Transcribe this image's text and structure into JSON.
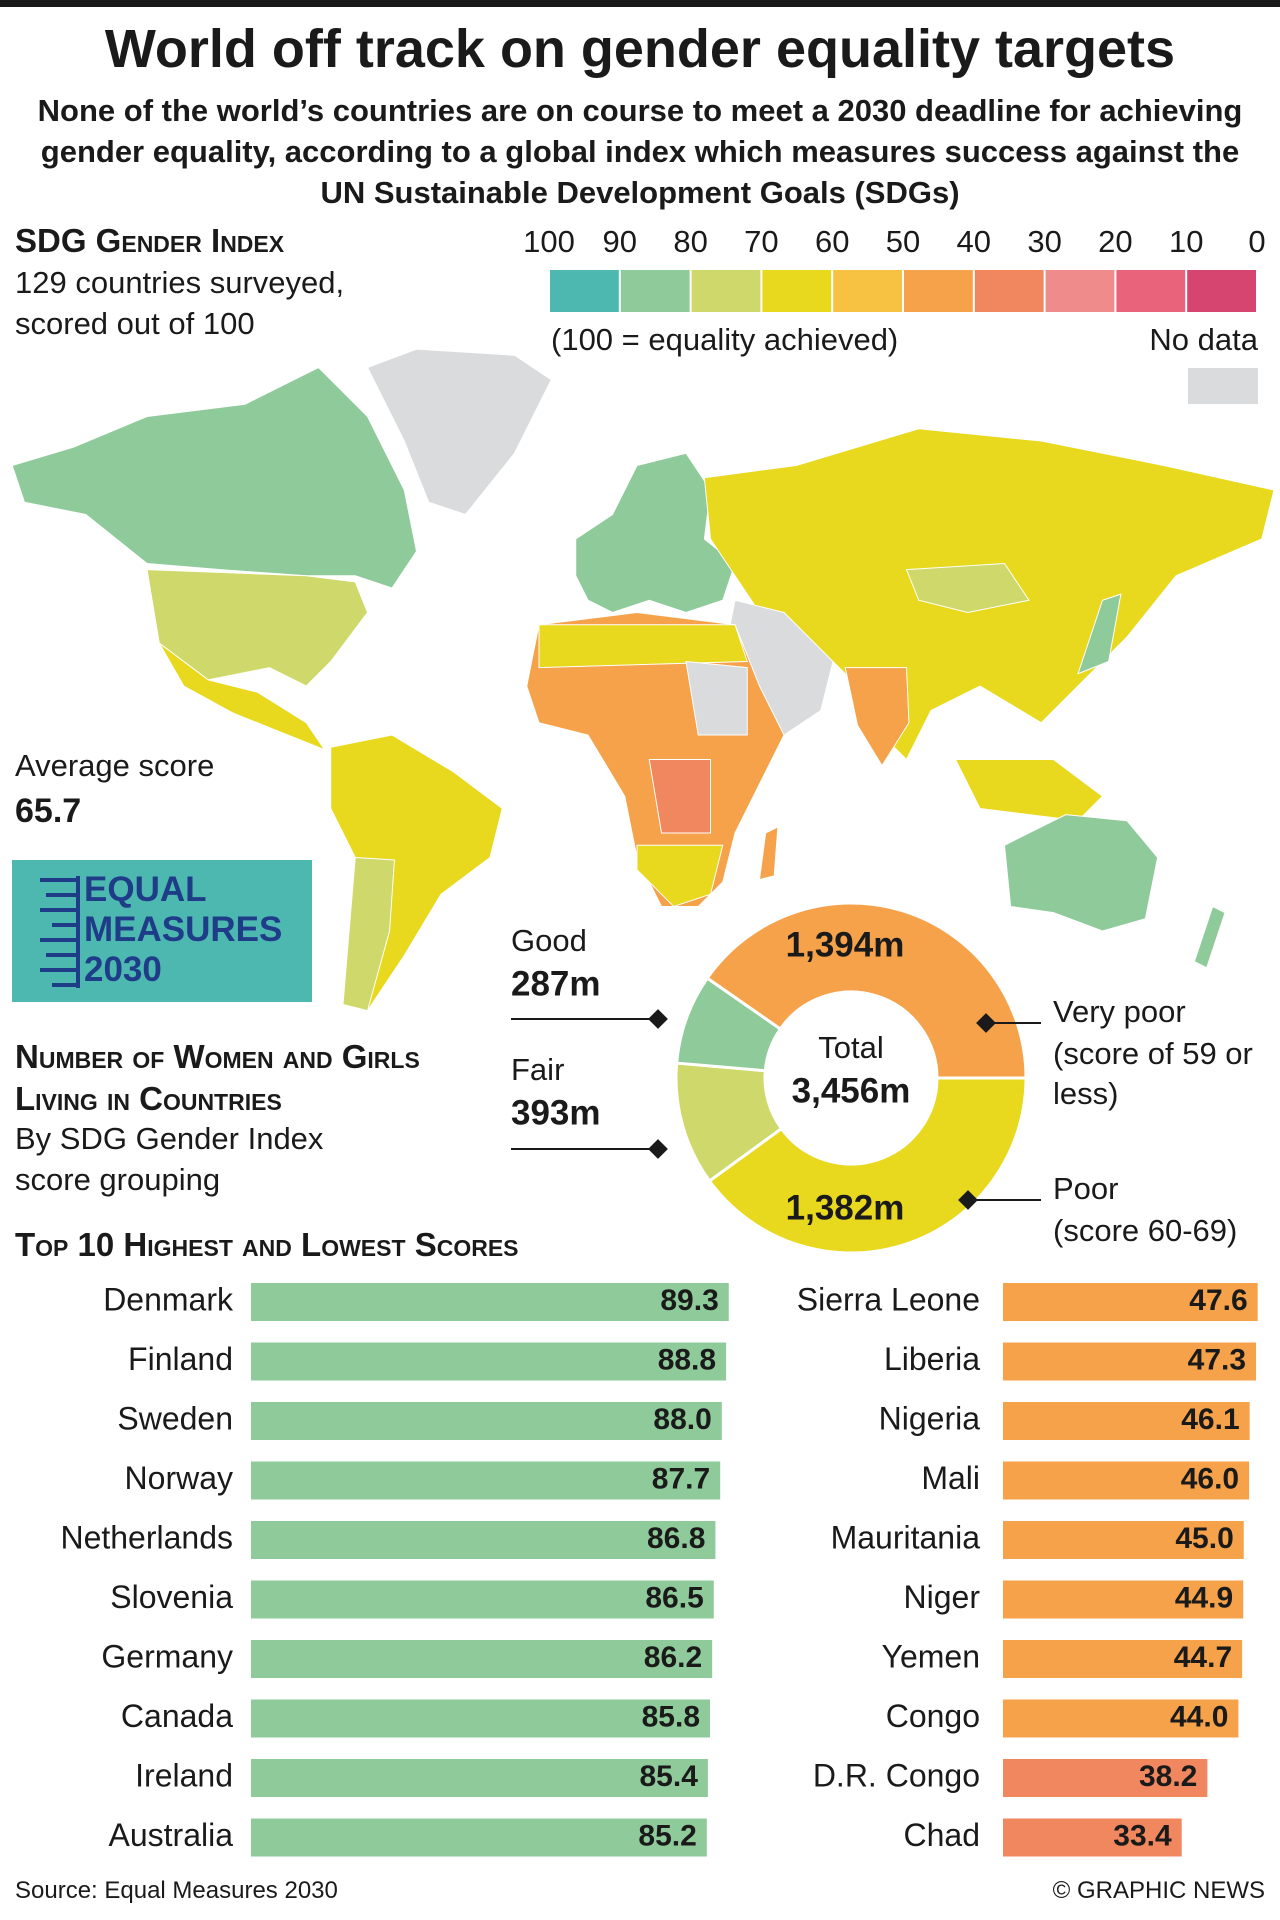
{
  "header": {
    "title": "World off track on gender equality targets",
    "subtitle": "None of the world’s countries are on course to meet a 2030 deadline for achieving gender equality, according to a global index which measures success against the UN Sustainable Development Goals (SDGs)"
  },
  "index": {
    "heading": "SDG Gender Index",
    "note": "129 countries surveyed, scored out of 100",
    "scale_note": "(100 = equality achieved)",
    "no_data": "No data",
    "no_data_color": "#d9dbdc",
    "average_label": "Average score",
    "average": 65.7
  },
  "legend": {
    "ticks": [
      100,
      90,
      80,
      70,
      60,
      50,
      40,
      30,
      20,
      10,
      0
    ],
    "colors": [
      "#4db8b0",
      "#8fca9a",
      "#cfd86a",
      "#e8d81e",
      "#f7c242",
      "#f5a24a",
      "#f0875e",
      "#f08b8b",
      "#e9637a",
      "#d64570"
    ]
  },
  "logo": {
    "lines": [
      "EQUAL",
      "MEASURES",
      "2030"
    ]
  },
  "donut_heading": "Number of Women and Girls Living in Countries",
  "donut_subheading": "By SDG Gender Index score grouping",
  "bars_heading": "Top 10 Highest and Lowest Scores",
  "chart_data": [
    {
      "type": "donut",
      "center_label": "Total",
      "total": 3456,
      "total_label": "3,456m",
      "categories": [
        "Poor",
        "Fair",
        "Good",
        "Very poor"
      ],
      "values": [
        1382,
        393,
        287,
        1394
      ],
      "value_labels": [
        "1,382m",
        "393m",
        "287m",
        "1,394m"
      ],
      "colors": [
        "#e8d81e",
        "#cfd86a",
        "#8fca9a",
        "#f5a24a"
      ],
      "notes": {
        "Poor": "(score 60-69)",
        "Very poor": "(score of 59 or less)"
      }
    },
    {
      "type": "bar",
      "orientation": "horizontal",
      "categories": [
        "Denmark",
        "Finland",
        "Sweden",
        "Norway",
        "Netherlands",
        "Slovenia",
        "Germany",
        "Canada",
        "Ireland",
        "Australia"
      ],
      "values": [
        89.3,
        88.8,
        88.0,
        87.7,
        86.8,
        86.5,
        86.2,
        85.8,
        85.4,
        85.2
      ],
      "value_labels": [
        "89.3",
        "88.8",
        "88.0",
        "87.7",
        "86.8",
        "86.5",
        "86.2",
        "85.8",
        "85.4",
        "85.2"
      ],
      "color": "#8fca9a",
      "xlim": [
        0,
        100
      ]
    },
    {
      "type": "bar",
      "orientation": "horizontal",
      "categories": [
        "Sierra Leone",
        "Liberia",
        "Nigeria",
        "Mali",
        "Mauritania",
        "Niger",
        "Yemen",
        "Congo",
        "D.R. Congo",
        "Chad"
      ],
      "values": [
        47.6,
        47.3,
        46.1,
        46.0,
        45.0,
        44.9,
        44.7,
        44.0,
        38.2,
        33.4
      ],
      "value_labels": [
        "47.6",
        "47.3",
        "46.1",
        "46.0",
        "45.0",
        "44.9",
        "44.7",
        "44.0",
        "38.2",
        "33.4"
      ],
      "colors": [
        "#f5a24a",
        "#f5a24a",
        "#f5a24a",
        "#f5a24a",
        "#f5a24a",
        "#f5a24a",
        "#f5a24a",
        "#f5a24a",
        "#f0875e",
        "#f0875e"
      ],
      "xlim": [
        0,
        100
      ]
    }
  ],
  "footer": {
    "source": "Source: Equal Measures 2030",
    "credit": "© GRAPHIC NEWS"
  }
}
